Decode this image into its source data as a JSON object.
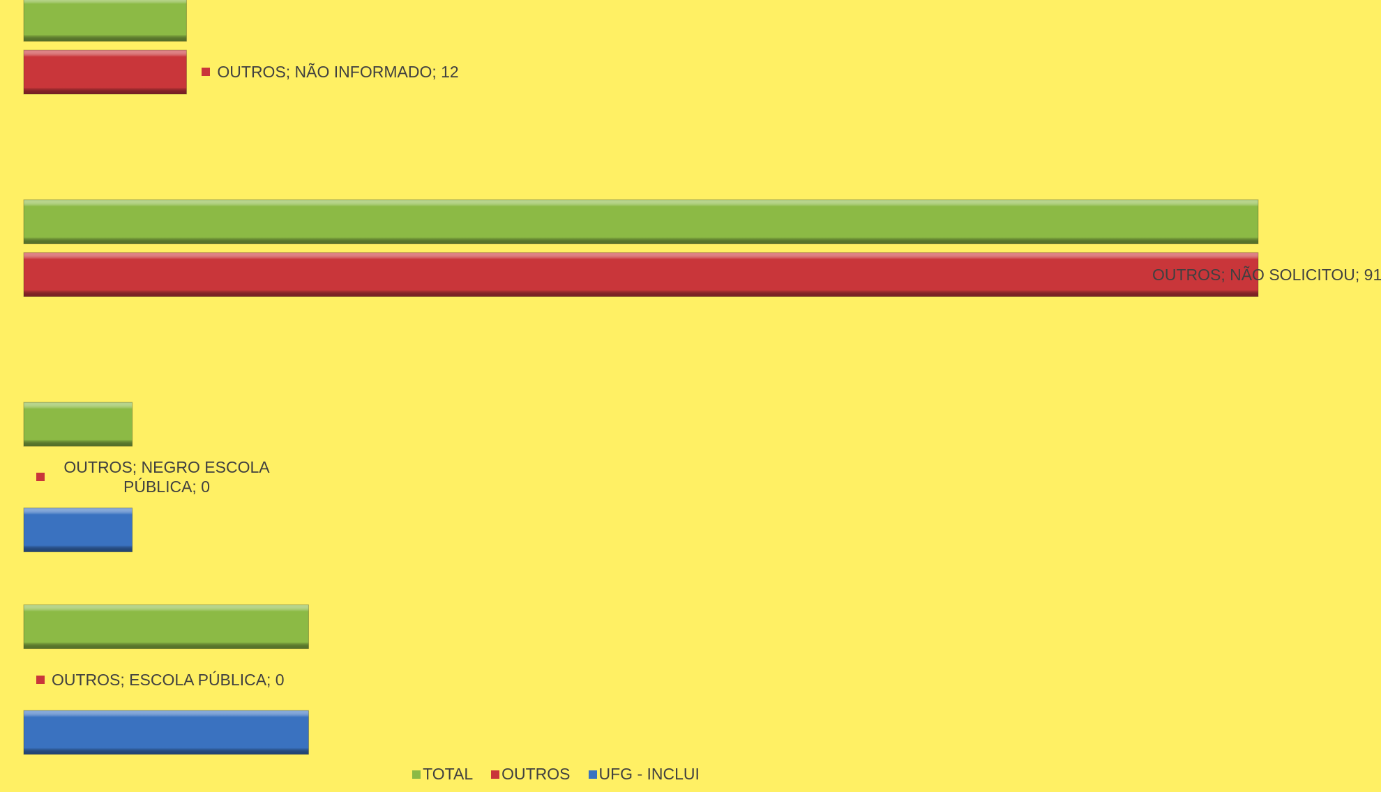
{
  "chart_data": {
    "type": "bar",
    "orientation": "horizontal",
    "categories": [
      "NÃO INFORMADO",
      "NÃO SOLICITOU",
      "NEGRO ESCOLA PÚBLICA",
      "ESCOLA PÚBLICA"
    ],
    "series": [
      {
        "name": "TOTAL",
        "color": "#8cba45",
        "values": [
          12,
          91,
          8,
          21
        ]
      },
      {
        "name": "OUTROS",
        "color": "#c9363a",
        "values": [
          12,
          91,
          0,
          0
        ],
        "value_labels": [
          "OUTROS; NÃO INFORMADO; 12",
          "OUTROS; NÃO SOLICITOU; 91",
          "OUTROS; NEGRO ESCOLA PÚBLICA; 0",
          "OUTROS; ESCOLA PÚBLICA; 0"
        ]
      },
      {
        "name": "UFG - INCLUI",
        "color": "#3a72c0",
        "values": [
          0,
          0,
          8,
          21
        ]
      }
    ],
    "xlim": [
      0,
      100
    ],
    "legend": "bottom"
  }
}
